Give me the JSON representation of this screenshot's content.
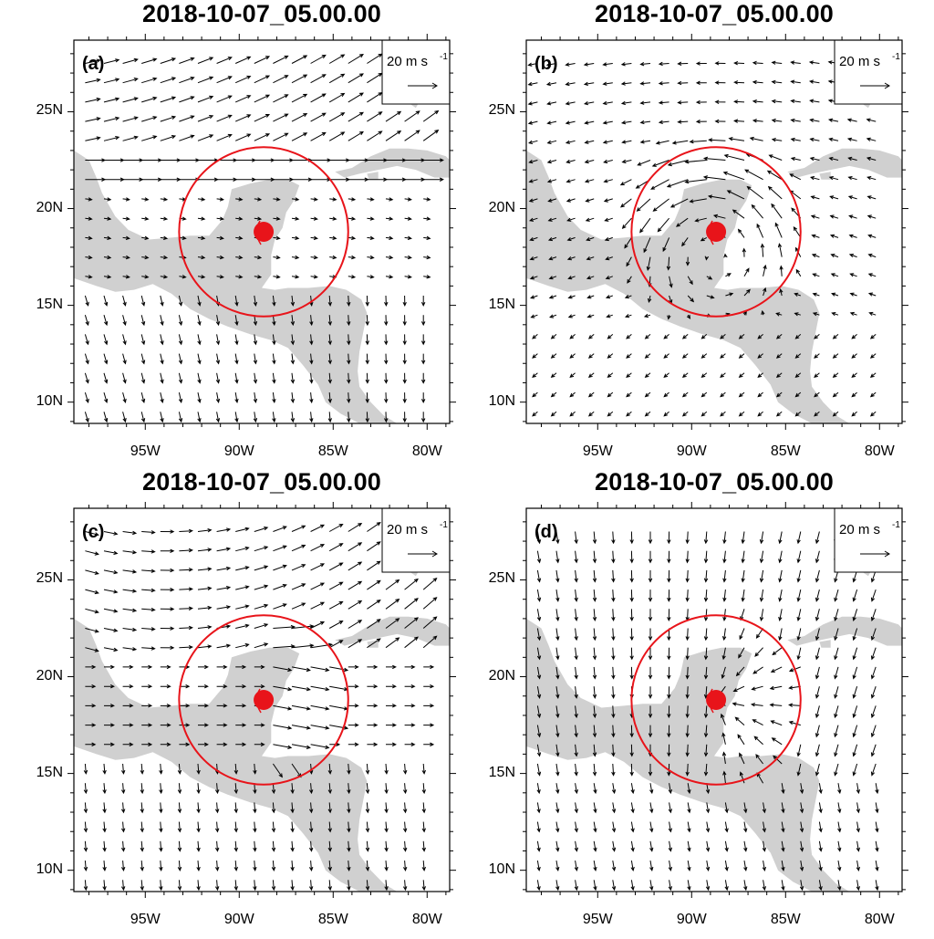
{
  "figure": {
    "panels": [
      {
        "id": "a",
        "title": "2018-10-07_05.00.00",
        "label": "(a)",
        "ref_vector": "20 m s",
        "ref_exp": "-1",
        "pattern": "westerly"
      },
      {
        "id": "b",
        "title": "2018-10-07_05.00.00",
        "label": "(b)",
        "ref_vector": "20 m s",
        "ref_exp": "-1",
        "pattern": "cyclonic"
      },
      {
        "id": "c",
        "title": "2018-10-07_05.00.00",
        "label": "(c)",
        "ref_vector": "20 m s",
        "ref_exp": "-1",
        "pattern": "mixed"
      },
      {
        "id": "d",
        "title": "2018-10-07_05.00.00",
        "label": "(d)",
        "ref_vector": "20 m s",
        "ref_exp": "-1",
        "pattern": "northerly"
      }
    ],
    "lat_ticks": [
      "25N",
      "20N",
      "15N",
      "10N"
    ],
    "lon_ticks": [
      "95W",
      "90W",
      "85W",
      "80W"
    ],
    "lat_values": [
      25,
      20,
      15,
      10
    ],
    "lon_values": [
      -95,
      -90,
      -85,
      -80
    ],
    "extent": {
      "lon": [
        -98.8,
        -78.8
      ],
      "lat": [
        8.9,
        28.7
      ]
    },
    "storm_center": {
      "lon": -88.7,
      "lat": 18.8
    },
    "circle_radius_deg": 4.5,
    "colors": {
      "land": "#d0d0d0",
      "circle": "#e8141a",
      "vector": "#000000",
      "frame": "#000000"
    }
  }
}
